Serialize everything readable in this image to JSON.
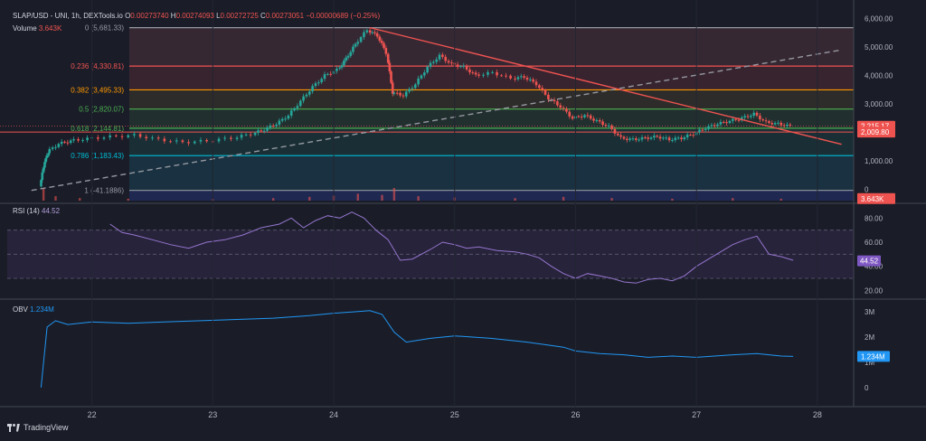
{
  "header": {
    "symbol": "SLAP/USD - UNI, 1h, DEXTools.io",
    "open_label": "O",
    "open": "0.00273740",
    "high_label": "H",
    "high": "0.00274093",
    "low_label": "L",
    "low": "0.00272725",
    "close_label": "C",
    "close": "0.00273051",
    "change": "−0.00000689 (−0.25%)",
    "volume_label": "Volume",
    "volume": "3.643K"
  },
  "rsi_header": {
    "label": "RSI (14)",
    "value": "44.52"
  },
  "obv_header": {
    "label": "OBV",
    "value": "1.234M"
  },
  "footer": {
    "brand": "TradingView"
  },
  "colors": {
    "background": "#1a1d28",
    "up": "#26a69a",
    "down": "#ef5350",
    "rsi": "#9575cd",
    "obv": "#2196f3",
    "trendline": "#ef5350",
    "dashed_trend": "#9598a1"
  },
  "chart_data": [
    {
      "type": "candlestick",
      "panel": "price",
      "x_ticks": [
        "22",
        "23",
        "24",
        "25",
        "26",
        "27",
        "28"
      ],
      "x_range": [
        21.3,
        28.3
      ],
      "ylim": [
        -400,
        6400
      ],
      "y_ticks": [
        "6,000.00",
        "5,000.00",
        "4,000.00",
        "3,000.00",
        "2,000.00",
        "1,000.00",
        "0"
      ],
      "y_tick_values": [
        6000,
        5000,
        4000,
        3000,
        2000,
        1000,
        0
      ],
      "price_badges": [
        {
          "label": "2,215.17",
          "value": 2215,
          "color": "#ef5350"
        },
        {
          "label": "2,009.80",
          "value": 2010,
          "color": "#ef5350"
        },
        {
          "label": "3.643K",
          "value": -330,
          "color": "#ef5350"
        }
      ],
      "fib_levels": [
        {
          "label": "0 (5,681.33)",
          "value": 5681,
          "color": "#9598a1",
          "fill": "#3a2a34"
        },
        {
          "label": "0.236 (4,330.81)",
          "value": 4331,
          "color": "#ef5350",
          "fill": "#3b2630"
        },
        {
          "label": "0.382 (3,495.33)",
          "value": 3495,
          "color": "#ff9800",
          "fill": "#302f2a"
        },
        {
          "label": "0.5 (2,820.07)",
          "value": 2820,
          "color": "#4caf50",
          "fill": "#223230"
        },
        {
          "label": "0.618 (2,144.81)",
          "value": 2145,
          "color": "#4caf50",
          "fill": "#1b3236"
        },
        {
          "label": "0.786 (1,183.43)",
          "value": 1183,
          "color": "#00bcd4",
          "fill": "#193442"
        },
        {
          "label": "1 (-41.1886)",
          "value": -41,
          "color": "#9598a1",
          "fill": "#262a35"
        }
      ],
      "trendlines": [
        {
          "from": [
            24.3,
            5681
          ],
          "to": [
            28.2,
            1580
          ],
          "color": "#ef5350",
          "style": "solid"
        },
        {
          "from": [
            21.5,
            -41
          ],
          "to": [
            28.2,
            4900
          ],
          "color": "#9598a1",
          "style": "dashed"
        }
      ],
      "horizontal_line": {
        "value": 2010,
        "color": "#ef5350"
      },
      "path": [
        [
          21.58,
          100
        ],
        [
          21.62,
          1000
        ],
        [
          21.65,
          1300
        ],
        [
          21.75,
          1600
        ],
        [
          21.85,
          1700
        ],
        [
          22.0,
          1780
        ],
        [
          22.2,
          1850
        ],
        [
          22.4,
          1900
        ],
        [
          22.6,
          1750
        ],
        [
          22.8,
          1650
        ],
        [
          23.0,
          1700
        ],
        [
          23.2,
          1800
        ],
        [
          23.35,
          1950
        ],
        [
          23.45,
          2100
        ],
        [
          23.55,
          2300
        ],
        [
          23.65,
          2600
        ],
        [
          23.75,
          3100
        ],
        [
          23.85,
          3600
        ],
        [
          23.95,
          4000
        ],
        [
          24.05,
          4200
        ],
        [
          24.12,
          4600
        ],
        [
          24.2,
          5100
        ],
        [
          24.3,
          5600
        ],
        [
          24.38,
          5400
        ],
        [
          24.45,
          4800
        ],
        [
          24.5,
          3400
        ],
        [
          24.6,
          3300
        ],
        [
          24.7,
          3700
        ],
        [
          24.8,
          4300
        ],
        [
          24.9,
          4700
        ],
        [
          25.0,
          4400
        ],
        [
          25.1,
          4300
        ],
        [
          25.2,
          4000
        ],
        [
          25.35,
          4100
        ],
        [
          25.5,
          3900
        ],
        [
          25.6,
          3950
        ],
        [
          25.7,
          3700
        ],
        [
          25.8,
          3200
        ],
        [
          25.9,
          2900
        ],
        [
          26.0,
          2500
        ],
        [
          26.1,
          2600
        ],
        [
          26.2,
          2400
        ],
        [
          26.3,
          2200
        ],
        [
          26.4,
          1800
        ],
        [
          26.5,
          1750
        ],
        [
          26.6,
          1800
        ],
        [
          26.7,
          1850
        ],
        [
          26.8,
          1750
        ],
        [
          26.9,
          1800
        ],
        [
          27.0,
          1950
        ],
        [
          27.1,
          2150
        ],
        [
          27.2,
          2300
        ],
        [
          27.3,
          2400
        ],
        [
          27.4,
          2500
        ],
        [
          27.5,
          2650
        ],
        [
          27.6,
          2350
        ],
        [
          27.7,
          2300
        ],
        [
          27.8,
          2215
        ]
      ],
      "volume_bars": [
        [
          21.6,
          0.95
        ],
        [
          21.7,
          0.35
        ],
        [
          21.9,
          0.2
        ],
        [
          22.3,
          0.15
        ],
        [
          23.0,
          0.12
        ],
        [
          23.5,
          0.2
        ],
        [
          23.8,
          0.3
        ],
        [
          24.0,
          0.4
        ],
        [
          24.2,
          0.55
        ],
        [
          24.4,
          0.45
        ],
        [
          24.5,
          1.0
        ],
        [
          24.7,
          0.35
        ],
        [
          25.0,
          0.25
        ],
        [
          25.5,
          0.2
        ],
        [
          25.9,
          0.3
        ],
        [
          26.3,
          0.2
        ],
        [
          26.8,
          0.15
        ],
        [
          27.3,
          0.2
        ],
        [
          27.7,
          0.15
        ]
      ]
    },
    {
      "type": "line",
      "panel": "rsi",
      "name": "RSI (14)",
      "ylim": [
        15,
        90
      ],
      "y_ticks": [
        "80.00",
        "60.00",
        "40.00",
        "20.00"
      ],
      "y_tick_values": [
        80,
        60,
        40,
        20
      ],
      "bands": [
        70,
        50,
        30
      ],
      "current_badge": {
        "label": "44.52",
        "value": 44.52
      },
      "points": [
        [
          22.15,
          75
        ],
        [
          22.25,
          68
        ],
        [
          22.35,
          66
        ],
        [
          22.5,
          62
        ],
        [
          22.65,
          58
        ],
        [
          22.8,
          55
        ],
        [
          22.95,
          60
        ],
        [
          23.1,
          62
        ],
        [
          23.25,
          66
        ],
        [
          23.4,
          72
        ],
        [
          23.55,
          75
        ],
        [
          23.65,
          80
        ],
        [
          23.75,
          72
        ],
        [
          23.85,
          78
        ],
        [
          23.95,
          82
        ],
        [
          24.05,
          80
        ],
        [
          24.15,
          85
        ],
        [
          24.25,
          80
        ],
        [
          24.35,
          70
        ],
        [
          24.45,
          62
        ],
        [
          24.55,
          45
        ],
        [
          24.65,
          46
        ],
        [
          24.8,
          54
        ],
        [
          24.9,
          60
        ],
        [
          25.0,
          58
        ],
        [
          25.1,
          55
        ],
        [
          25.2,
          56
        ],
        [
          25.35,
          53
        ],
        [
          25.5,
          52
        ],
        [
          25.6,
          50
        ],
        [
          25.7,
          47
        ],
        [
          25.8,
          40
        ],
        [
          25.9,
          34
        ],
        [
          26.0,
          30
        ],
        [
          26.1,
          34
        ],
        [
          26.2,
          32
        ],
        [
          26.3,
          30
        ],
        [
          26.4,
          27
        ],
        [
          26.5,
          26
        ],
        [
          26.6,
          29
        ],
        [
          26.7,
          30
        ],
        [
          26.8,
          28
        ],
        [
          26.9,
          32
        ],
        [
          27.0,
          40
        ],
        [
          27.1,
          46
        ],
        [
          27.2,
          52
        ],
        [
          27.3,
          58
        ],
        [
          27.4,
          62
        ],
        [
          27.5,
          65
        ],
        [
          27.6,
          50
        ],
        [
          27.7,
          48
        ],
        [
          27.8,
          45
        ]
      ]
    },
    {
      "type": "line",
      "panel": "obv",
      "name": "OBV",
      "ylim": [
        -0.4,
        3.4
      ],
      "y_ticks": [
        "3M",
        "2M",
        "1M",
        "0"
      ],
      "y_tick_values": [
        3,
        2,
        1,
        0
      ],
      "current_badge": {
        "label": "1.234M",
        "value": 1.234
      },
      "points": [
        [
          21.58,
          0.0
        ],
        [
          21.63,
          2.4
        ],
        [
          21.7,
          2.65
        ],
        [
          21.8,
          2.5
        ],
        [
          22.0,
          2.6
        ],
        [
          22.3,
          2.55
        ],
        [
          22.6,
          2.6
        ],
        [
          22.9,
          2.65
        ],
        [
          23.2,
          2.7
        ],
        [
          23.5,
          2.75
        ],
        [
          23.8,
          2.85
        ],
        [
          24.0,
          2.95
        ],
        [
          24.15,
          3.0
        ],
        [
          24.3,
          3.05
        ],
        [
          24.4,
          2.9
        ],
        [
          24.5,
          2.2
        ],
        [
          24.6,
          1.8
        ],
        [
          24.8,
          1.95
        ],
        [
          25.0,
          2.05
        ],
        [
          25.3,
          1.95
        ],
        [
          25.6,
          1.8
        ],
        [
          25.9,
          1.6
        ],
        [
          26.0,
          1.45
        ],
        [
          26.2,
          1.35
        ],
        [
          26.4,
          1.3
        ],
        [
          26.6,
          1.2
        ],
        [
          26.8,
          1.25
        ],
        [
          27.0,
          1.2
        ],
        [
          27.3,
          1.3
        ],
        [
          27.5,
          1.35
        ],
        [
          27.7,
          1.25
        ],
        [
          27.8,
          1.234
        ]
      ]
    }
  ]
}
